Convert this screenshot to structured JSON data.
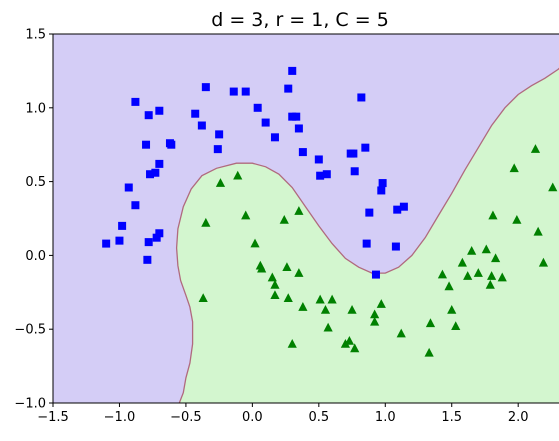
{
  "chart_data": {
    "type": "scatter",
    "title": "d = 3, r = 1, C = 5",
    "xlabel": "",
    "ylabel": "",
    "xlim": [
      -1.5,
      2.45
    ],
    "ylim": [
      -1.0,
      1.5
    ],
    "xticks": [
      -1.5,
      -1.0,
      -0.5,
      0.0,
      0.5,
      1.0,
      1.5,
      2.0
    ],
    "xtick_labels": [
      "−1.5",
      "−1.0",
      "−0.5",
      "0.0",
      "0.5",
      "1.0",
      "1.5",
      "2.0"
    ],
    "yticks": [
      -1.0,
      -0.5,
      0.0,
      0.5,
      1.0,
      1.5
    ],
    "ytick_labels": [
      "−1.0",
      "−0.5",
      "0.0",
      "0.5",
      "1.0",
      "1.5"
    ],
    "grid": false,
    "legend": "none",
    "regions": {
      "class_0_color": "#d4cdf6",
      "class_1_color": "#d3f6cf",
      "boundary_color": "#b06a7e",
      "boundary": [
        [
          -0.55,
          -1.0
        ],
        [
          -0.52,
          -0.93
        ],
        [
          -0.5,
          -0.83
        ],
        [
          -0.47,
          -0.73
        ],
        [
          -0.45,
          -0.6
        ],
        [
          -0.45,
          -0.45
        ],
        [
          -0.47,
          -0.35
        ],
        [
          -0.5,
          -0.27
        ],
        [
          -0.54,
          -0.17
        ],
        [
          -0.56,
          -0.07
        ],
        [
          -0.57,
          0.05
        ],
        [
          -0.56,
          0.18
        ],
        [
          -0.52,
          0.33
        ],
        [
          -0.46,
          0.45
        ],
        [
          -0.38,
          0.54
        ],
        [
          -0.27,
          0.59
        ],
        [
          -0.12,
          0.625
        ],
        [
          0.0,
          0.625
        ],
        [
          0.1,
          0.6
        ],
        [
          0.2,
          0.55
        ],
        [
          0.3,
          0.46
        ],
        [
          0.4,
          0.33
        ],
        [
          0.5,
          0.2
        ],
        [
          0.6,
          0.08
        ],
        [
          0.7,
          -0.02
        ],
        [
          0.8,
          -0.08
        ],
        [
          0.9,
          -0.12
        ],
        [
          1.0,
          -0.12
        ],
        [
          1.1,
          -0.08
        ],
        [
          1.2,
          0.0
        ],
        [
          1.3,
          0.12
        ],
        [
          1.4,
          0.27
        ],
        [
          1.5,
          0.42
        ],
        [
          1.6,
          0.58
        ],
        [
          1.7,
          0.73
        ],
        [
          1.8,
          0.88
        ],
        [
          1.9,
          1.0
        ],
        [
          2.0,
          1.09
        ],
        [
          2.1,
          1.15
        ],
        [
          2.2,
          1.2
        ],
        [
          2.3,
          1.26
        ],
        [
          2.38,
          1.33
        ],
        [
          2.45,
          1.4
        ]
      ]
    },
    "series": [
      {
        "marker": "square",
        "color": "#0000ff",
        "points": [
          [
            -1.1,
            0.08
          ],
          [
            -1.0,
            0.1
          ],
          [
            -0.98,
            0.2
          ],
          [
            -0.93,
            0.46
          ],
          [
            -0.88,
            0.34
          ],
          [
            -0.88,
            1.04
          ],
          [
            -0.8,
            0.75
          ],
          [
            -0.78,
            0.95
          ],
          [
            -0.79,
            -0.03
          ],
          [
            -0.78,
            0.09
          ],
          [
            -0.77,
            0.55
          ],
          [
            -0.73,
            0.56
          ],
          [
            -0.72,
            0.12
          ],
          [
            -0.7,
            0.15
          ],
          [
            -0.7,
            0.62
          ],
          [
            -0.7,
            0.98
          ],
          [
            -0.61,
            0.75
          ],
          [
            -0.62,
            0.76
          ],
          [
            -0.43,
            0.96
          ],
          [
            -0.38,
            0.88
          ],
          [
            -0.35,
            1.14
          ],
          [
            -0.26,
            0.72
          ],
          [
            -0.25,
            0.82
          ],
          [
            -0.14,
            1.11
          ],
          [
            -0.05,
            1.11
          ],
          [
            0.04,
            1.0
          ],
          [
            0.1,
            0.9
          ],
          [
            0.17,
            0.8
          ],
          [
            0.27,
            1.13
          ],
          [
            0.3,
            1.25
          ],
          [
            0.3,
            0.94
          ],
          [
            0.33,
            0.94
          ],
          [
            0.35,
            0.86
          ],
          [
            0.38,
            0.7
          ],
          [
            0.5,
            0.65
          ],
          [
            0.51,
            0.54
          ],
          [
            0.56,
            0.55
          ],
          [
            0.74,
            0.69
          ],
          [
            0.76,
            0.69
          ],
          [
            0.77,
            0.57
          ],
          [
            0.82,
            1.07
          ],
          [
            0.85,
            0.73
          ],
          [
            0.86,
            0.08
          ],
          [
            0.88,
            0.29
          ],
          [
            0.93,
            -0.13
          ],
          [
            0.97,
            0.44
          ],
          [
            0.98,
            0.49
          ],
          [
            1.08,
            0.06
          ],
          [
            1.09,
            0.31
          ],
          [
            1.14,
            0.33
          ]
        ]
      },
      {
        "marker": "triangle",
        "color": "#008000",
        "points": [
          [
            -0.35,
            0.22
          ],
          [
            -0.37,
            -0.29
          ],
          [
            -0.24,
            0.49
          ],
          [
            -0.11,
            0.54
          ],
          [
            -0.05,
            0.27
          ],
          [
            0.02,
            0.08
          ],
          [
            0.06,
            -0.07
          ],
          [
            0.07,
            -0.09
          ],
          [
            0.15,
            -0.15
          ],
          [
            0.17,
            -0.2
          ],
          [
            0.17,
            -0.27
          ],
          [
            0.24,
            0.24
          ],
          [
            0.26,
            -0.08
          ],
          [
            0.27,
            -0.29
          ],
          [
            0.3,
            -0.6
          ],
          [
            0.35,
            0.3
          ],
          [
            0.35,
            -0.12
          ],
          [
            0.38,
            -0.35
          ],
          [
            0.51,
            -0.3
          ],
          [
            0.55,
            -0.37
          ],
          [
            0.57,
            -0.49
          ],
          [
            0.6,
            -0.3
          ],
          [
            0.7,
            -0.6
          ],
          [
            0.73,
            -0.58
          ],
          [
            0.75,
            -0.37
          ],
          [
            0.77,
            -0.63
          ],
          [
            0.92,
            -0.4
          ],
          [
            0.92,
            -0.45
          ],
          [
            0.97,
            -0.33
          ],
          [
            1.12,
            -0.53
          ],
          [
            1.33,
            -0.66
          ],
          [
            1.34,
            -0.46
          ],
          [
            1.43,
            -0.13
          ],
          [
            1.48,
            -0.21
          ],
          [
            1.5,
            -0.37
          ],
          [
            1.53,
            -0.48
          ],
          [
            1.58,
            -0.05
          ],
          [
            1.62,
            -0.14
          ],
          [
            1.65,
            0.03
          ],
          [
            1.7,
            -0.12
          ],
          [
            1.76,
            0.04
          ],
          [
            1.79,
            -0.2
          ],
          [
            1.8,
            -0.14
          ],
          [
            1.81,
            0.27
          ],
          [
            1.83,
            -0.02
          ],
          [
            1.88,
            -0.15
          ],
          [
            1.97,
            0.59
          ],
          [
            1.99,
            0.24
          ],
          [
            2.13,
            0.72
          ],
          [
            2.15,
            0.16
          ],
          [
            2.19,
            -0.05
          ],
          [
            2.26,
            0.46
          ]
        ]
      }
    ]
  }
}
